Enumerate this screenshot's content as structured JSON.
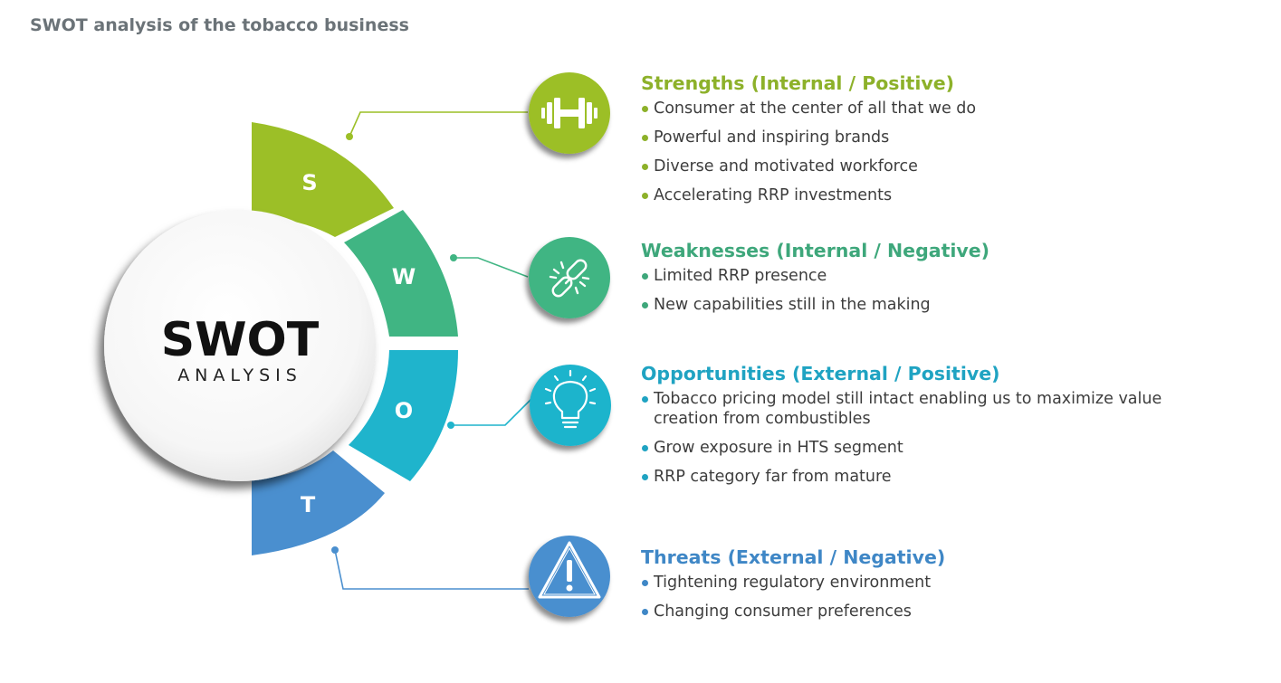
{
  "title": "SWOT analysis of the tobacco business",
  "center": {
    "main": "SWOT",
    "sub": "ANALYSIS"
  },
  "colors": {
    "strengths": "#9cbf27",
    "weaknesses": "#40b583",
    "opportunities": "#1fb4cc",
    "threats": "#4a8fcf"
  },
  "segments": {
    "s": "S",
    "w": "W",
    "o": "O",
    "t": "T"
  },
  "sections": {
    "strengths": {
      "heading": "Strengths (Internal / Positive)",
      "icon": "dumbbell-icon",
      "items": [
        "Consumer at the center of all that we do",
        "Powerful and inspiring brands",
        "Diverse and motivated workforce",
        "Accelerating RRP investments"
      ]
    },
    "weaknesses": {
      "heading": "Weaknesses (Internal / Negative)",
      "icon": "broken-link-icon",
      "items": [
        "Limited RRP presence",
        "New capabilities still in the making"
      ]
    },
    "opportunities": {
      "heading": "Opportunities (External / Positive)",
      "icon": "lightbulb-icon",
      "items": [
        "Tobacco pricing model still intact enabling us to maximize value creation from combustibles",
        "Grow exposure in HTS segment",
        "RRP category far from mature"
      ]
    },
    "threats": {
      "heading": "Threats (External / Negative)",
      "icon": "warning-icon",
      "items": [
        "Tightening regulatory environment",
        "Changing consumer preferences"
      ]
    }
  }
}
